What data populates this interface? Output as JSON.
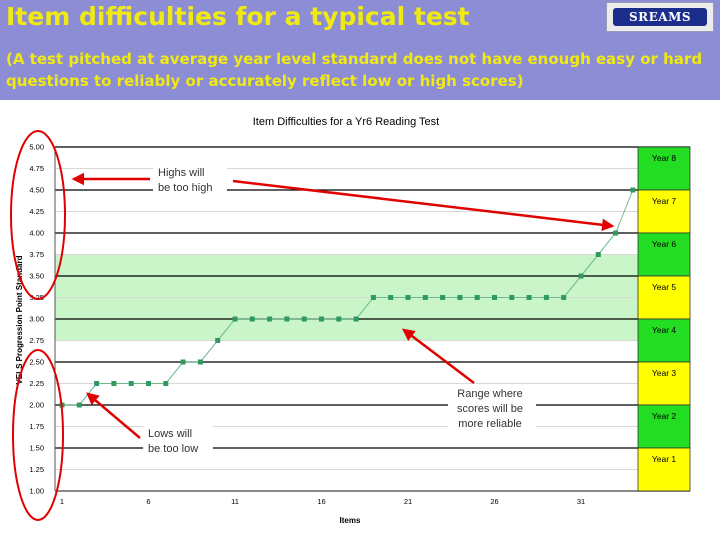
{
  "slide": {
    "title": "Item difficulties for a typical test",
    "subtitle": "(A test pitched at average year level standard does not have enough easy or hard questions to reliably or accurately reflect low or high scores)",
    "logo_text": "SREAMS",
    "accent_color": "#f0ea12",
    "header_color": "#8d8dd6"
  },
  "chart_data": {
    "type": "line",
    "title": "Item Difficulties for a Yr6 Reading Test",
    "xlabel": "Items",
    "ylabel": "VELS Progression Point Standard",
    "ylim": [
      1.0,
      5.0
    ],
    "xlim": [
      1,
      35
    ],
    "y_ticks": [
      "1.00",
      "1.25",
      "1.50",
      "1.75",
      "2.00",
      "2.25",
      "2.50",
      "2.75",
      "3.00",
      "3.25",
      "3.50",
      "3.75",
      "4.00",
      "4.25",
      "4.50",
      "4.75",
      "5.00"
    ],
    "x_ticks": [
      1,
      6,
      11,
      16,
      21,
      26,
      31
    ],
    "x_tick_labels": [
      "1",
      "6",
      "11",
      "16",
      "21",
      "26",
      "31"
    ],
    "grid": true,
    "series": [
      {
        "color": "#2e9a5e",
        "x": [
          1,
          2,
          3,
          4,
          5,
          6,
          7,
          8,
          9,
          10,
          11,
          12,
          13,
          14,
          15,
          16,
          17,
          18,
          19,
          20,
          21,
          22,
          23,
          24,
          25,
          26,
          27,
          28,
          29,
          30,
          31,
          32,
          33,
          34
        ],
        "y": [
          2.0,
          2.0,
          2.25,
          2.25,
          2.25,
          2.25,
          2.25,
          2.5,
          2.5,
          2.75,
          3.0,
          3.0,
          3.0,
          3.0,
          3.0,
          3.0,
          3.0,
          3.0,
          3.25,
          3.25,
          3.25,
          3.25,
          3.25,
          3.25,
          3.25,
          3.25,
          3.25,
          3.25,
          3.25,
          3.25,
          3.5,
          3.75,
          4.0,
          4.5
        ]
      }
    ],
    "year_bands": [
      {
        "label": "Year 8",
        "ymin": 4.5,
        "ymax": 5.0,
        "color": "#22dd22"
      },
      {
        "label": "Year 7",
        "ymin": 4.0,
        "ymax": 4.5,
        "color": "#ffff00"
      },
      {
        "label": "Year 6",
        "ymin": 3.5,
        "ymax": 4.0,
        "color": "#22dd22"
      },
      {
        "label": "Year 5",
        "ymin": 3.0,
        "ymax": 3.5,
        "color": "#ffff00"
      },
      {
        "label": "Year 4",
        "ymin": 2.5,
        "ymax": 3.0,
        "color": "#22dd22"
      },
      {
        "label": "Year 3",
        "ymin": 2.0,
        "ymax": 2.5,
        "color": "#ffff00"
      },
      {
        "label": "Year 2",
        "ymin": 1.5,
        "ymax": 2.0,
        "color": "#22dd22"
      },
      {
        "label": "Year 1",
        "ymin": 1.0,
        "ymax": 1.5,
        "color": "#ffff00"
      }
    ],
    "reliable_range": {
      "ymin": 2.75,
      "ymax": 3.75,
      "color": "#c9f5c9"
    },
    "annotations": [
      {
        "name": "highs",
        "text": [
          "Highs will",
          "be too high"
        ]
      },
      {
        "name": "range",
        "text": [
          "Range where",
          "scores will be",
          "more reliable"
        ]
      },
      {
        "name": "lows",
        "text": [
          "Lows will",
          "be too low"
        ]
      }
    ]
  }
}
